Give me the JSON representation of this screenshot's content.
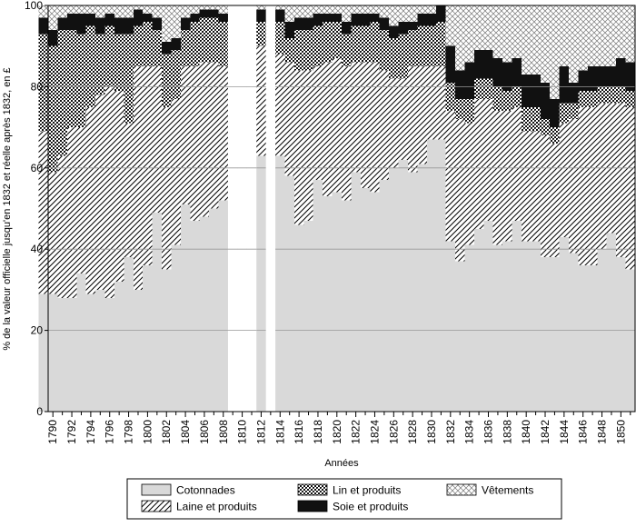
{
  "chart_data": {
    "type": "area",
    "stacked": true,
    "ylabel": "% de la valeur officielle jusqu'en 1832 et réelle après 1832, en £",
    "xlabel": "Années",
    "ylim": [
      0,
      100
    ],
    "yticks": [
      0,
      20,
      40,
      60,
      80,
      100
    ],
    "xticks": [
      1790,
      1792,
      1794,
      1796,
      1798,
      1800,
      1802,
      1804,
      1806,
      1808,
      1810,
      1812,
      1814,
      1816,
      1818,
      1820,
      1822,
      1824,
      1826,
      1828,
      1830,
      1832,
      1834,
      1836,
      1838,
      1840,
      1842,
      1844,
      1846,
      1848,
      1850
    ],
    "grid": "horizontal",
    "legend_position": "bottom",
    "missing_years": [
      1809,
      1810,
      1811,
      1813
    ],
    "years": [
      1789,
      1790,
      1791,
      1792,
      1793,
      1794,
      1795,
      1796,
      1797,
      1798,
      1799,
      1800,
      1801,
      1802,
      1803,
      1804,
      1805,
      1806,
      1807,
      1808,
      1812,
      1814,
      1815,
      1816,
      1817,
      1818,
      1819,
      1820,
      1821,
      1822,
      1823,
      1824,
      1825,
      1826,
      1827,
      1828,
      1829,
      1830,
      1831,
      1832,
      1833,
      1834,
      1835,
      1836,
      1837,
      1838,
      1839,
      1840,
      1841,
      1842,
      1843,
      1844,
      1845,
      1846,
      1847,
      1848,
      1849,
      1850,
      1851
    ],
    "series": [
      {
        "name": "Cotonnades",
        "pattern": "solid-light-gray",
        "values": [
          29,
          29,
          28,
          28,
          34,
          29,
          30,
          28,
          32,
          38,
          30,
          36,
          49,
          35,
          41,
          51,
          47,
          48,
          50,
          52,
          63,
          63,
          58,
          46,
          47,
          57,
          53,
          54,
          52,
          59,
          55,
          54,
          57,
          60,
          62,
          59,
          61,
          67,
          67,
          42,
          37,
          41,
          45,
          47,
          41,
          42,
          47,
          42,
          42,
          38,
          38,
          43,
          39,
          36,
          36,
          40,
          44,
          38,
          35
        ]
      },
      {
        "name": "Laine et produits",
        "pattern": "diagonal-hatch",
        "values": [
          40,
          30,
          35,
          42,
          36,
          46,
          48,
          52,
          47,
          33,
          55,
          49,
          36,
          40,
          36,
          34,
          38,
          38,
          36,
          33,
          27,
          25,
          28,
          38,
          37,
          28,
          33,
          33,
          33,
          27,
          31,
          32,
          27,
          22,
          20,
          26,
          24,
          18,
          18,
          32,
          35,
          30,
          32,
          30,
          33,
          32,
          28,
          27,
          27,
          30,
          28,
          28,
          33,
          39,
          39,
          36,
          32,
          38,
          40
        ]
      },
      {
        "name": "Lin et produits",
        "pattern": "dense-dots",
        "values": [
          24,
          31,
          31,
          24,
          23,
          20,
          15,
          15,
          14,
          22,
          10,
          11,
          9,
          13,
          12,
          9,
          11,
          11,
          11,
          11,
          6,
          8,
          6,
          10,
          10,
          10,
          10,
          9,
          8,
          9,
          9,
          10,
          10,
          10,
          11,
          9,
          10,
          10,
          11,
          7,
          5,
          6,
          5,
          5,
          6,
          5,
          5,
          6,
          6,
          4,
          4,
          5,
          4,
          4,
          4,
          4,
          4,
          4,
          4
        ]
      },
      {
        "name": "Soie et produits",
        "pattern": "solid-black",
        "values": [
          4,
          4,
          3,
          4,
          5,
          3,
          4,
          3,
          4,
          4,
          4,
          2,
          3,
          3,
          3,
          3,
          2,
          2,
          2,
          2,
          3,
          3,
          4,
          3,
          3,
          3,
          2,
          2,
          3,
          3,
          3,
          2,
          3,
          3,
          3,
          2,
          3,
          3,
          4,
          9,
          7,
          9,
          7,
          7,
          7,
          7,
          7,
          8,
          8,
          9,
          7,
          9,
          5,
          5,
          6,
          5,
          5,
          7,
          7
        ]
      },
      {
        "name": "Vêtements",
        "pattern": "crosshatch",
        "values": [
          3,
          6,
          3,
          2,
          2,
          2,
          3,
          2,
          3,
          3,
          1,
          2,
          3,
          9,
          8,
          3,
          2,
          1,
          1,
          2,
          1,
          1,
          4,
          3,
          3,
          2,
          2,
          2,
          4,
          2,
          2,
          2,
          3,
          5,
          4,
          4,
          2,
          2,
          0,
          10,
          16,
          14,
          11,
          11,
          13,
          14,
          13,
          17,
          17,
          19,
          23,
          15,
          19,
          16,
          15,
          15,
          15,
          13,
          14
        ]
      }
    ]
  }
}
